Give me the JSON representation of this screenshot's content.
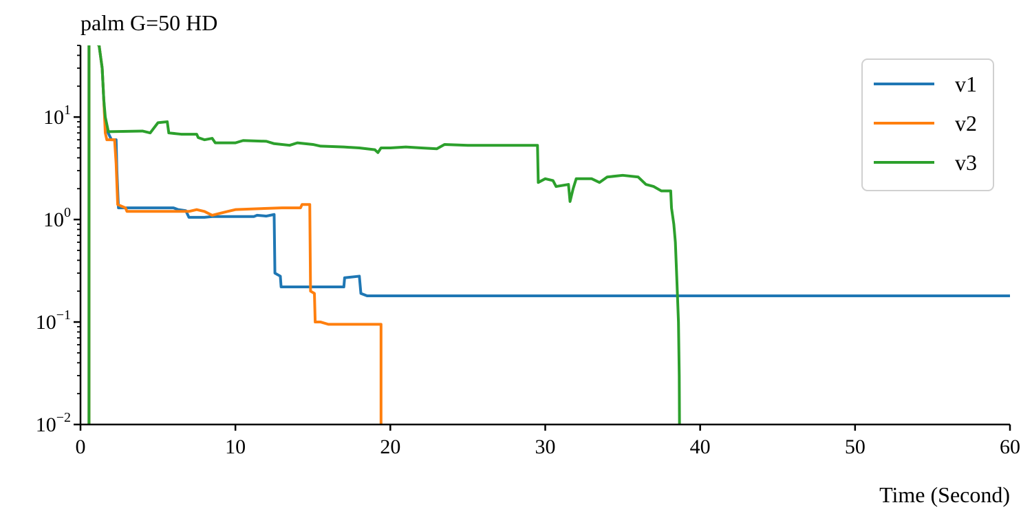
{
  "chart_data": {
    "type": "line",
    "title": "palm G=50 HD",
    "xlabel": "Time (Second)",
    "ylabel": "",
    "xlim": [
      0,
      60
    ],
    "ylim": [
      0.01,
      50
    ],
    "yscale": "log",
    "grid": false,
    "legend_position": "top-right",
    "x_ticks": [
      {
        "value": 0,
        "label": "0"
      },
      {
        "value": 10,
        "label": "10"
      },
      {
        "value": 20,
        "label": "20"
      },
      {
        "value": 30,
        "label": "30"
      },
      {
        "value": 40,
        "label": "40"
      },
      {
        "value": 50,
        "label": "50"
      },
      {
        "value": 60,
        "label": "60"
      }
    ],
    "y_ticks": [
      {
        "value": 0.01,
        "base": "10",
        "exp": "−2"
      },
      {
        "value": 0.1,
        "base": "10",
        "exp": "−1"
      },
      {
        "value": 1,
        "base": "10",
        "exp": "0"
      },
      {
        "value": 10,
        "base": "10",
        "exp": "1"
      }
    ],
    "series": [
      {
        "name": "v1",
        "color": "#1f77b4",
        "points": [
          [
            0.55,
            0.001
          ],
          [
            0.55,
            60
          ],
          [
            1.2,
            50
          ],
          [
            1.4,
            30
          ],
          [
            1.5,
            15
          ],
          [
            1.6,
            8
          ],
          [
            2.0,
            6.0
          ],
          [
            2.3,
            6.0
          ],
          [
            2.35,
            3.0
          ],
          [
            2.45,
            1.3
          ],
          [
            6.0,
            1.3
          ],
          [
            6.3,
            1.25
          ],
          [
            6.8,
            1.22
          ],
          [
            7.0,
            1.05
          ],
          [
            8.0,
            1.05
          ],
          [
            8.5,
            1.07
          ],
          [
            11.2,
            1.07
          ],
          [
            11.4,
            1.1
          ],
          [
            12.0,
            1.08
          ],
          [
            12.5,
            1.12
          ],
          [
            12.55,
            0.3
          ],
          [
            12.9,
            0.28
          ],
          [
            12.95,
            0.22
          ],
          [
            16.0,
            0.22
          ],
          [
            17.0,
            0.22
          ],
          [
            17.05,
            0.27
          ],
          [
            18.0,
            0.28
          ],
          [
            18.1,
            0.19
          ],
          [
            18.5,
            0.18
          ],
          [
            25,
            0.18
          ],
          [
            40,
            0.18
          ],
          [
            60,
            0.18
          ]
        ]
      },
      {
        "name": "v2",
        "color": "#ff7f0e",
        "points": [
          [
            0.55,
            0.001
          ],
          [
            0.55,
            60
          ],
          [
            1.2,
            50
          ],
          [
            1.4,
            30
          ],
          [
            1.5,
            15
          ],
          [
            1.6,
            7
          ],
          [
            1.7,
            6.0
          ],
          [
            2.2,
            6.0
          ],
          [
            2.3,
            3.5
          ],
          [
            2.4,
            1.4
          ],
          [
            2.9,
            1.3
          ],
          [
            3.0,
            1.2
          ],
          [
            7.0,
            1.2
          ],
          [
            7.5,
            1.25
          ],
          [
            8.0,
            1.2
          ],
          [
            8.5,
            1.1
          ],
          [
            9.0,
            1.15
          ],
          [
            9.5,
            1.2
          ],
          [
            10.0,
            1.25
          ],
          [
            13.0,
            1.3
          ],
          [
            14.2,
            1.3
          ],
          [
            14.3,
            1.4
          ],
          [
            14.8,
            1.4
          ],
          [
            14.85,
            0.2
          ],
          [
            15.1,
            0.19
          ],
          [
            15.15,
            0.1
          ],
          [
            15.5,
            0.1
          ],
          [
            16.0,
            0.095
          ],
          [
            19.4,
            0.095
          ],
          [
            19.4,
            0.001
          ]
        ]
      },
      {
        "name": "v3",
        "color": "#2ca02c",
        "points": [
          [
            0.55,
            0.001
          ],
          [
            0.55,
            60
          ],
          [
            1.2,
            50
          ],
          [
            1.4,
            30
          ],
          [
            1.5,
            15
          ],
          [
            1.6,
            10
          ],
          [
            1.8,
            7.2
          ],
          [
            4.0,
            7.3
          ],
          [
            4.5,
            7.0
          ],
          [
            5.0,
            8.8
          ],
          [
            5.6,
            9.0
          ],
          [
            5.7,
            7.0
          ],
          [
            6.5,
            6.8
          ],
          [
            7.5,
            6.8
          ],
          [
            7.6,
            6.3
          ],
          [
            8.0,
            6.0
          ],
          [
            8.5,
            6.2
          ],
          [
            8.7,
            5.6
          ],
          [
            10.0,
            5.6
          ],
          [
            10.5,
            5.9
          ],
          [
            12.0,
            5.8
          ],
          [
            12.5,
            5.5
          ],
          [
            13.5,
            5.3
          ],
          [
            14.0,
            5.6
          ],
          [
            15.0,
            5.4
          ],
          [
            15.5,
            5.2
          ],
          [
            17.0,
            5.1
          ],
          [
            18.0,
            5.0
          ],
          [
            19.0,
            4.8
          ],
          [
            19.2,
            4.5
          ],
          [
            19.4,
            5.0
          ],
          [
            20.0,
            5.0
          ],
          [
            21.0,
            5.1
          ],
          [
            22.0,
            5.0
          ],
          [
            23.0,
            4.9
          ],
          [
            23.5,
            5.4
          ],
          [
            25.0,
            5.3
          ],
          [
            29.5,
            5.3
          ],
          [
            29.55,
            2.3
          ],
          [
            30.0,
            2.5
          ],
          [
            30.5,
            2.4
          ],
          [
            30.7,
            2.1
          ],
          [
            31.5,
            2.2
          ],
          [
            31.6,
            1.5
          ],
          [
            31.8,
            2.0
          ],
          [
            32.0,
            2.5
          ],
          [
            33.0,
            2.5
          ],
          [
            33.5,
            2.3
          ],
          [
            34.0,
            2.6
          ],
          [
            35.0,
            2.7
          ],
          [
            36.0,
            2.6
          ],
          [
            36.5,
            2.2
          ],
          [
            37.0,
            2.1
          ],
          [
            37.5,
            1.9
          ],
          [
            38.1,
            1.9
          ],
          [
            38.15,
            1.3
          ],
          [
            38.3,
            0.9
          ],
          [
            38.4,
            0.6
          ],
          [
            38.5,
            0.25
          ],
          [
            38.6,
            0.1
          ],
          [
            38.65,
            0.03
          ],
          [
            38.7,
            0.001
          ]
        ]
      }
    ]
  }
}
